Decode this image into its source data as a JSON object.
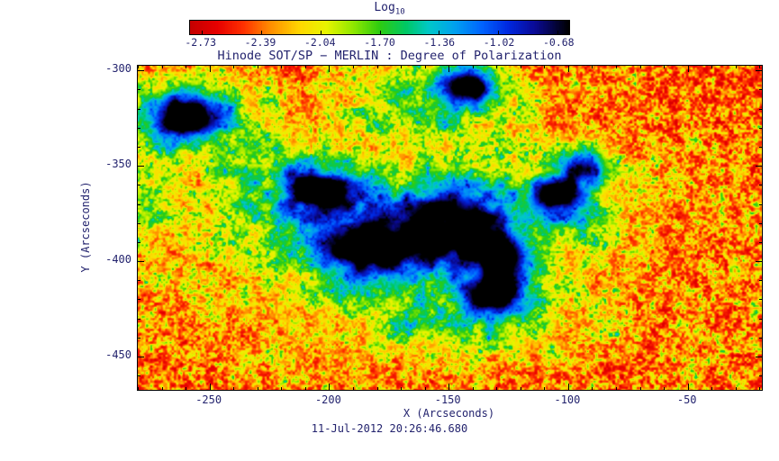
{
  "ui_colors": {
    "text": "#23236e",
    "frame": "#000000",
    "background": "#ffffff"
  },
  "chart_data": {
    "type": "heatmap",
    "title": "Hinode SOT/SP − MERLIN : Degree of Polarization",
    "xlabel": "X (Arcseconds)",
    "ylabel": "Y (Arcseconds)",
    "timestamp": "11-Jul-2012 20:26:46.680",
    "colorbar": {
      "title_main": "Log",
      "title_sub": "10",
      "tick_labels": [
        "-2.73",
        "-2.39",
        "-2.04",
        "-1.70",
        "-1.36",
        "-1.02",
        "-0.68"
      ],
      "value_min": -2.73,
      "value_max": -0.68
    },
    "xlim": [
      -280,
      -19
    ],
    "ylim": [
      -297.5,
      -467.5
    ],
    "xticks": [
      -250,
      -200,
      -150,
      -100,
      -50
    ],
    "yticks": [
      -300,
      -350,
      -400,
      -450
    ],
    "minor_tick_step": 10,
    "major_tick_step": 50,
    "grid": false,
    "colormap": [
      {
        "v": 0.0,
        "c": "#c40000"
      },
      {
        "v": 0.07,
        "c": "#e60000"
      },
      {
        "v": 0.14,
        "c": "#ff3000"
      },
      {
        "v": 0.21,
        "c": "#ff8c00"
      },
      {
        "v": 0.29,
        "c": "#ffd800"
      },
      {
        "v": 0.36,
        "c": "#e8f500"
      },
      {
        "v": 0.43,
        "c": "#90e800"
      },
      {
        "v": 0.5,
        "c": "#2ecc10"
      },
      {
        "v": 0.57,
        "c": "#00c864"
      },
      {
        "v": 0.63,
        "c": "#00c8c8"
      },
      {
        "v": 0.7,
        "c": "#00a0f0"
      },
      {
        "v": 0.77,
        "c": "#0064ff"
      },
      {
        "v": 0.84,
        "c": "#0028e0"
      },
      {
        "v": 0.91,
        "c": "#0a0a96"
      },
      {
        "v": 1.0,
        "c": "#000000"
      }
    ],
    "features": [
      {
        "name": "spot-upper-left",
        "x": -260,
        "y": -324,
        "sx": 11,
        "sy": 9,
        "amp": 0.98,
        "mottle": false
      },
      {
        "name": "halo-upper-left",
        "x": -259,
        "y": -325,
        "sx": 21,
        "sy": 16,
        "amp": 0.42,
        "mottle": true
      },
      {
        "name": "plage-left-of-complex",
        "x": -222,
        "y": -360,
        "sx": 18,
        "sy": 16,
        "amp": 0.42,
        "mottle": true
      },
      {
        "name": "spot-complex-nw",
        "x": -202,
        "y": -364,
        "sx": 10,
        "sy": 8,
        "amp": 0.9,
        "mottle": false
      },
      {
        "name": "spot-complex-w",
        "x": -184,
        "y": -394,
        "sx": 14,
        "sy": 11,
        "amp": 0.92,
        "mottle": false
      },
      {
        "name": "spot-main-ring",
        "x": -150,
        "y": -380,
        "sx": 15,
        "sy": 13,
        "amp": 1.0,
        "mottle": false
      },
      {
        "name": "spot-main-ring-center",
        "x": -150,
        "y": -380,
        "sx": 6,
        "sy": 5,
        "amp": -0.3,
        "mottle": false
      },
      {
        "name": "spot-complex-s",
        "x": -131,
        "y": -417,
        "sx": 9,
        "sy": 8,
        "amp": 0.85,
        "mottle": false
      },
      {
        "name": "spot-complex-e",
        "x": -127,
        "y": -398,
        "sx": 9,
        "sy": 8,
        "amp": 0.8,
        "mottle": false
      },
      {
        "name": "spot-top-center",
        "x": -143,
        "y": -309,
        "sx": 9,
        "sy": 7,
        "amp": 0.9,
        "mottle": false
      },
      {
        "name": "spot-right-a",
        "x": -104,
        "y": -365,
        "sx": 8,
        "sy": 6,
        "amp": 0.8,
        "mottle": false
      },
      {
        "name": "spot-right-b",
        "x": -94,
        "y": -350,
        "sx": 7,
        "sy": 6,
        "amp": 0.7,
        "mottle": false
      },
      {
        "name": "halo-complex",
        "x": -170,
        "y": -390,
        "sx": 52,
        "sy": 36,
        "amp": 0.48,
        "mottle": true
      },
      {
        "name": "halo-top-center",
        "x": -160,
        "y": -315,
        "sx": 28,
        "sy": 14,
        "amp": 0.4,
        "mottle": true
      },
      {
        "name": "halo-right",
        "x": -100,
        "y": -370,
        "sx": 20,
        "sy": 16,
        "amp": 0.38,
        "mottle": true
      },
      {
        "name": "halo-south",
        "x": -135,
        "y": -430,
        "sx": 25,
        "sy": 12,
        "amp": 0.3,
        "mottle": true
      },
      {
        "name": "patch-left-edge",
        "x": -276,
        "y": -368,
        "sx": 8,
        "sy": 14,
        "amp": 0.3,
        "mottle": true
      }
    ],
    "texture": {
      "seed": 7,
      "fine_scales": [
        2.4,
        4.8
      ],
      "medium_scales": [
        13,
        29
      ],
      "base_offset": 0.02,
      "fine_amp": 0.46,
      "medium_amp": 0.3
    }
  }
}
